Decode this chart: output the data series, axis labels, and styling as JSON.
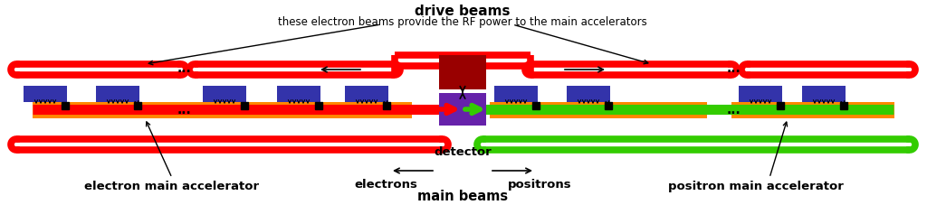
{
  "bg_color": "#ffffff",
  "fig_width": 10.24,
  "fig_height": 2.28,
  "dpi": 100,
  "title_text": "drive beams",
  "subtitle_text": "these electron beams provide the RF power to the main accelerators",
  "red_color": "#ff0000",
  "green_color": "#33cc00",
  "orange_color": "#ff8800",
  "blue_color": "#3333aa",
  "purple_color": "#6622aa",
  "darkred_color": "#990000",
  "black": "#000000",
  "labels": {
    "electron_main": "electron main accelerator",
    "positron_main": "positron main accelerator",
    "electrons": "electrons",
    "positrons": "positrons",
    "main_beams": "main beams",
    "detector": "detector"
  }
}
